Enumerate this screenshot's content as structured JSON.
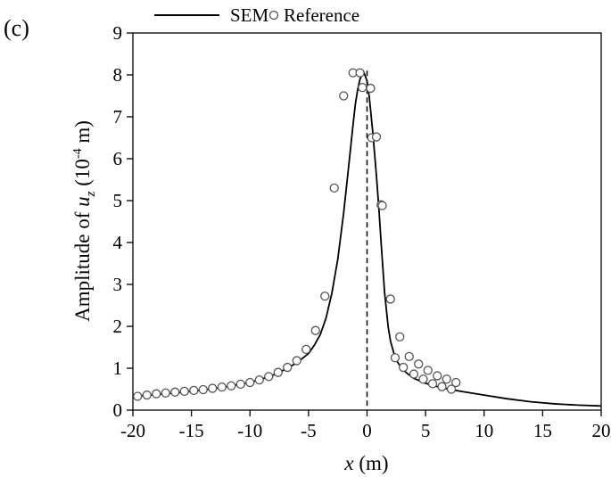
{
  "panel_label": "(c)",
  "chart_data": {
    "type": "line",
    "title": "",
    "xlabel": {
      "var": "x",
      "unit": " (m)"
    },
    "ylabel": {
      "prefix": "Amplitude of ",
      "var": "u",
      "sub": "z",
      "unit_open": " (10",
      "unit_exp": "-4",
      "unit_close": " m)"
    },
    "xlim": [
      -20,
      20
    ],
    "ylim": [
      0,
      9
    ],
    "x_ticks": [
      -20,
      -15,
      -10,
      -5,
      0,
      5,
      10,
      15,
      20
    ],
    "y_ticks": [
      0,
      1,
      2,
      3,
      4,
      5,
      6,
      7,
      8,
      9
    ],
    "grid": false,
    "legend_position": "top",
    "vertical_reference_line": {
      "x": 0,
      "style": "dashed"
    },
    "series": [
      {
        "name": "SEM",
        "style": "line",
        "color": "#000000",
        "x": [
          -20,
          -18,
          -16,
          -14,
          -12,
          -10,
          -9,
          -8,
          -7,
          -6,
          -5,
          -4.5,
          -4,
          -3.5,
          -3,
          -2.5,
          -2,
          -1.5,
          -1.2,
          -1,
          -0.8,
          -0.6,
          -0.4,
          -0.25,
          0,
          0.2,
          0.5,
          0.8,
          1,
          1.2,
          1.5,
          1.8,
          2,
          2.3,
          2.6,
          3,
          3.5,
          4,
          5,
          6,
          7,
          8,
          10,
          12,
          14,
          16,
          18,
          20
        ],
        "y": [
          0.33,
          0.37,
          0.42,
          0.48,
          0.56,
          0.66,
          0.74,
          0.84,
          0.97,
          1.13,
          1.35,
          1.55,
          1.8,
          2.2,
          2.8,
          3.6,
          4.7,
          6.0,
          6.8,
          7.3,
          7.65,
          7.9,
          8.02,
          8.05,
          7.85,
          7.45,
          6.6,
          5.6,
          4.85,
          4.0,
          2.8,
          2.0,
          1.65,
          1.35,
          1.15,
          0.98,
          0.86,
          0.76,
          0.64,
          0.56,
          0.5,
          0.45,
          0.36,
          0.27,
          0.2,
          0.15,
          0.12,
          0.1
        ]
      },
      {
        "name": "Reference",
        "style": "marker",
        "marker": "open-circle",
        "color": "#555555",
        "x": [
          -19.6,
          -18.8,
          -18.0,
          -17.2,
          -16.4,
          -15.6,
          -14.8,
          -14.0,
          -13.2,
          -12.4,
          -11.6,
          -10.8,
          -10.0,
          -9.2,
          -8.4,
          -7.6,
          -6.8,
          -6.0,
          -5.2,
          -4.4,
          -3.6,
          -2.8,
          -2.0,
          -1.2,
          -0.4,
          0.4,
          1.2,
          2.0,
          2.8,
          3.6,
          4.4,
          5.2,
          6.0,
          6.8,
          7.6,
          -0.6,
          0.3,
          0.8,
          1.3,
          2.4,
          3.1,
          4.0,
          4.8,
          5.6,
          6.4,
          7.2
        ],
        "y": [
          0.33,
          0.36,
          0.39,
          0.41,
          0.43,
          0.45,
          0.47,
          0.49,
          0.52,
          0.55,
          0.58,
          0.62,
          0.66,
          0.72,
          0.8,
          0.9,
          1.02,
          1.18,
          1.45,
          1.9,
          2.72,
          5.3,
          7.5,
          8.05,
          7.7,
          6.5,
          4.9,
          2.65,
          1.75,
          1.28,
          1.1,
          0.95,
          0.82,
          0.74,
          0.66,
          8.05,
          7.68,
          6.52,
          4.88,
          1.25,
          1.02,
          0.86,
          0.74,
          0.63,
          0.56,
          0.5
        ]
      }
    ]
  }
}
